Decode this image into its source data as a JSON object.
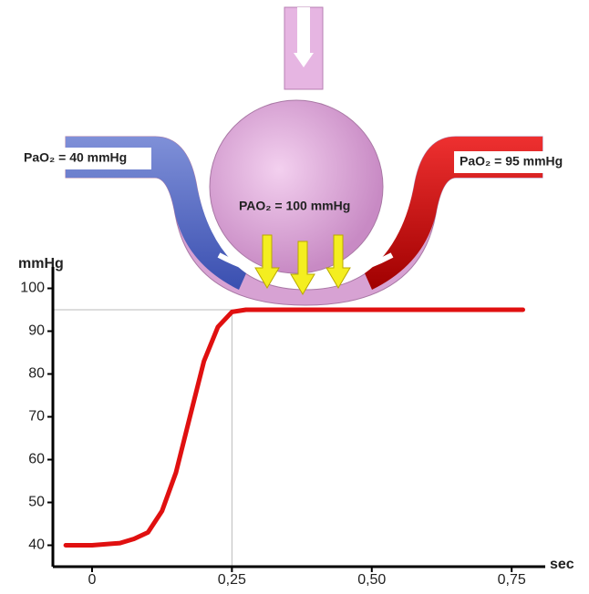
{
  "chart_data": {
    "type": "line",
    "annotations": [
      "PaO₂ = 40 mmHg",
      "PAO₂ = 100 mmHg",
      "PaO₂ = 95 mmHg"
    ],
    "ylabel": "mmHg",
    "xlabel": "sec",
    "x": [
      -0.047,
      0,
      0.05,
      0.075,
      0.1,
      0.125,
      0.15,
      0.175,
      0.2,
      0.225,
      0.25,
      0.275,
      0.3,
      0.5,
      0.77
    ],
    "values": [
      40,
      40,
      40.5,
      41.5,
      43,
      48,
      57,
      70,
      83,
      91,
      94.5,
      95,
      95,
      95,
      95
    ],
    "color": "#e01010",
    "xlim": [
      -0.07,
      0.81
    ],
    "ylim": [
      35,
      105
    ],
    "xticks": [
      0,
      {
        "value": 0.25,
        "label": "0,25"
      },
      {
        "value": 0.5,
        "label": "0,50"
      },
      {
        "value": 0.75,
        "label": "0,75"
      }
    ],
    "yticks": [
      40,
      50,
      60,
      70,
      80,
      90,
      100
    ],
    "reference_lines": {
      "x": 0.25,
      "y": 95
    }
  }
}
